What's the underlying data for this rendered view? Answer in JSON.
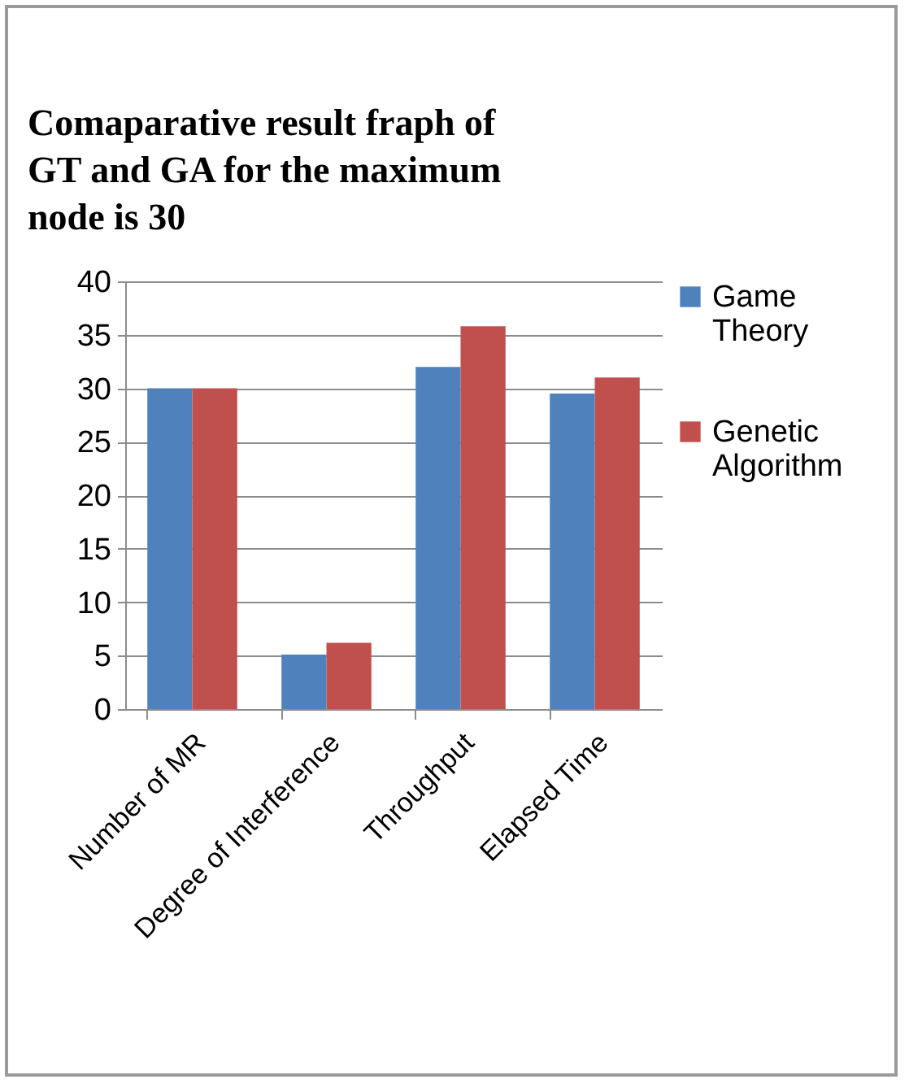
{
  "chart_data": {
    "type": "bar",
    "title": "Comaparative result fraph of GT and GA for the maximum node is 30",
    "categories": [
      "Number of MR",
      "Degree of Interference",
      "Throughput",
      "Elapsed Time"
    ],
    "series": [
      {
        "name": "Game Theory",
        "color": "#4f81bd",
        "values": [
          30,
          5.1,
          32,
          29.5
        ]
      },
      {
        "name": "Genetic Algorithm",
        "color": "#c0504d",
        "values": [
          30,
          6.2,
          35.8,
          31
        ]
      }
    ],
    "ylim": [
      0,
      40
    ],
    "yticks": [
      0,
      5,
      10,
      15,
      20,
      25,
      30,
      35,
      40
    ],
    "grid": "y",
    "legend": "right"
  }
}
